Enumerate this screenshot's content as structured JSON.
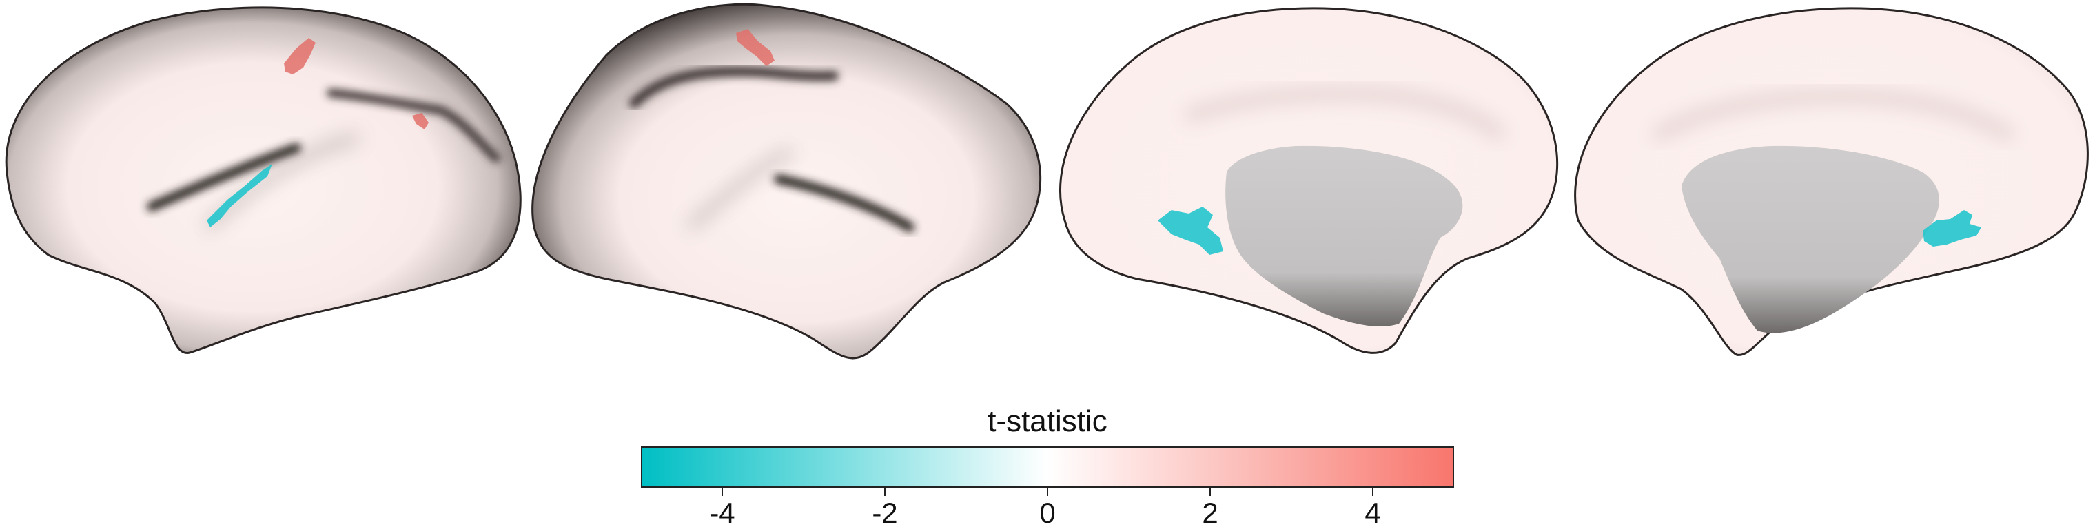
{
  "figure": {
    "views": [
      {
        "name": "left-hemisphere-lateral-view"
      },
      {
        "name": "right-hemisphere-lateral-view"
      },
      {
        "name": "left-hemisphere-medial-view"
      },
      {
        "name": "right-hemisphere-medial-view"
      }
    ],
    "colors": {
      "surface": "#fbeeec",
      "surface_shadow": "#3a3432",
      "medial_wall": "#c8c6c6",
      "positive_cluster": "#e3706a",
      "negative_cluster": "#22c5cc"
    }
  },
  "colorbar": {
    "title": "t-statistic",
    "min": -5,
    "max": 5,
    "colors": {
      "low": "#00bfc4",
      "mid": "#ffffff",
      "high": "#f8766d"
    },
    "ticks": [
      {
        "value": -4,
        "label": "-4"
      },
      {
        "value": -2,
        "label": "-2"
      },
      {
        "value": 0,
        "label": "0"
      },
      {
        "value": 2,
        "label": "2"
      },
      {
        "value": 4,
        "label": "4"
      }
    ]
  }
}
